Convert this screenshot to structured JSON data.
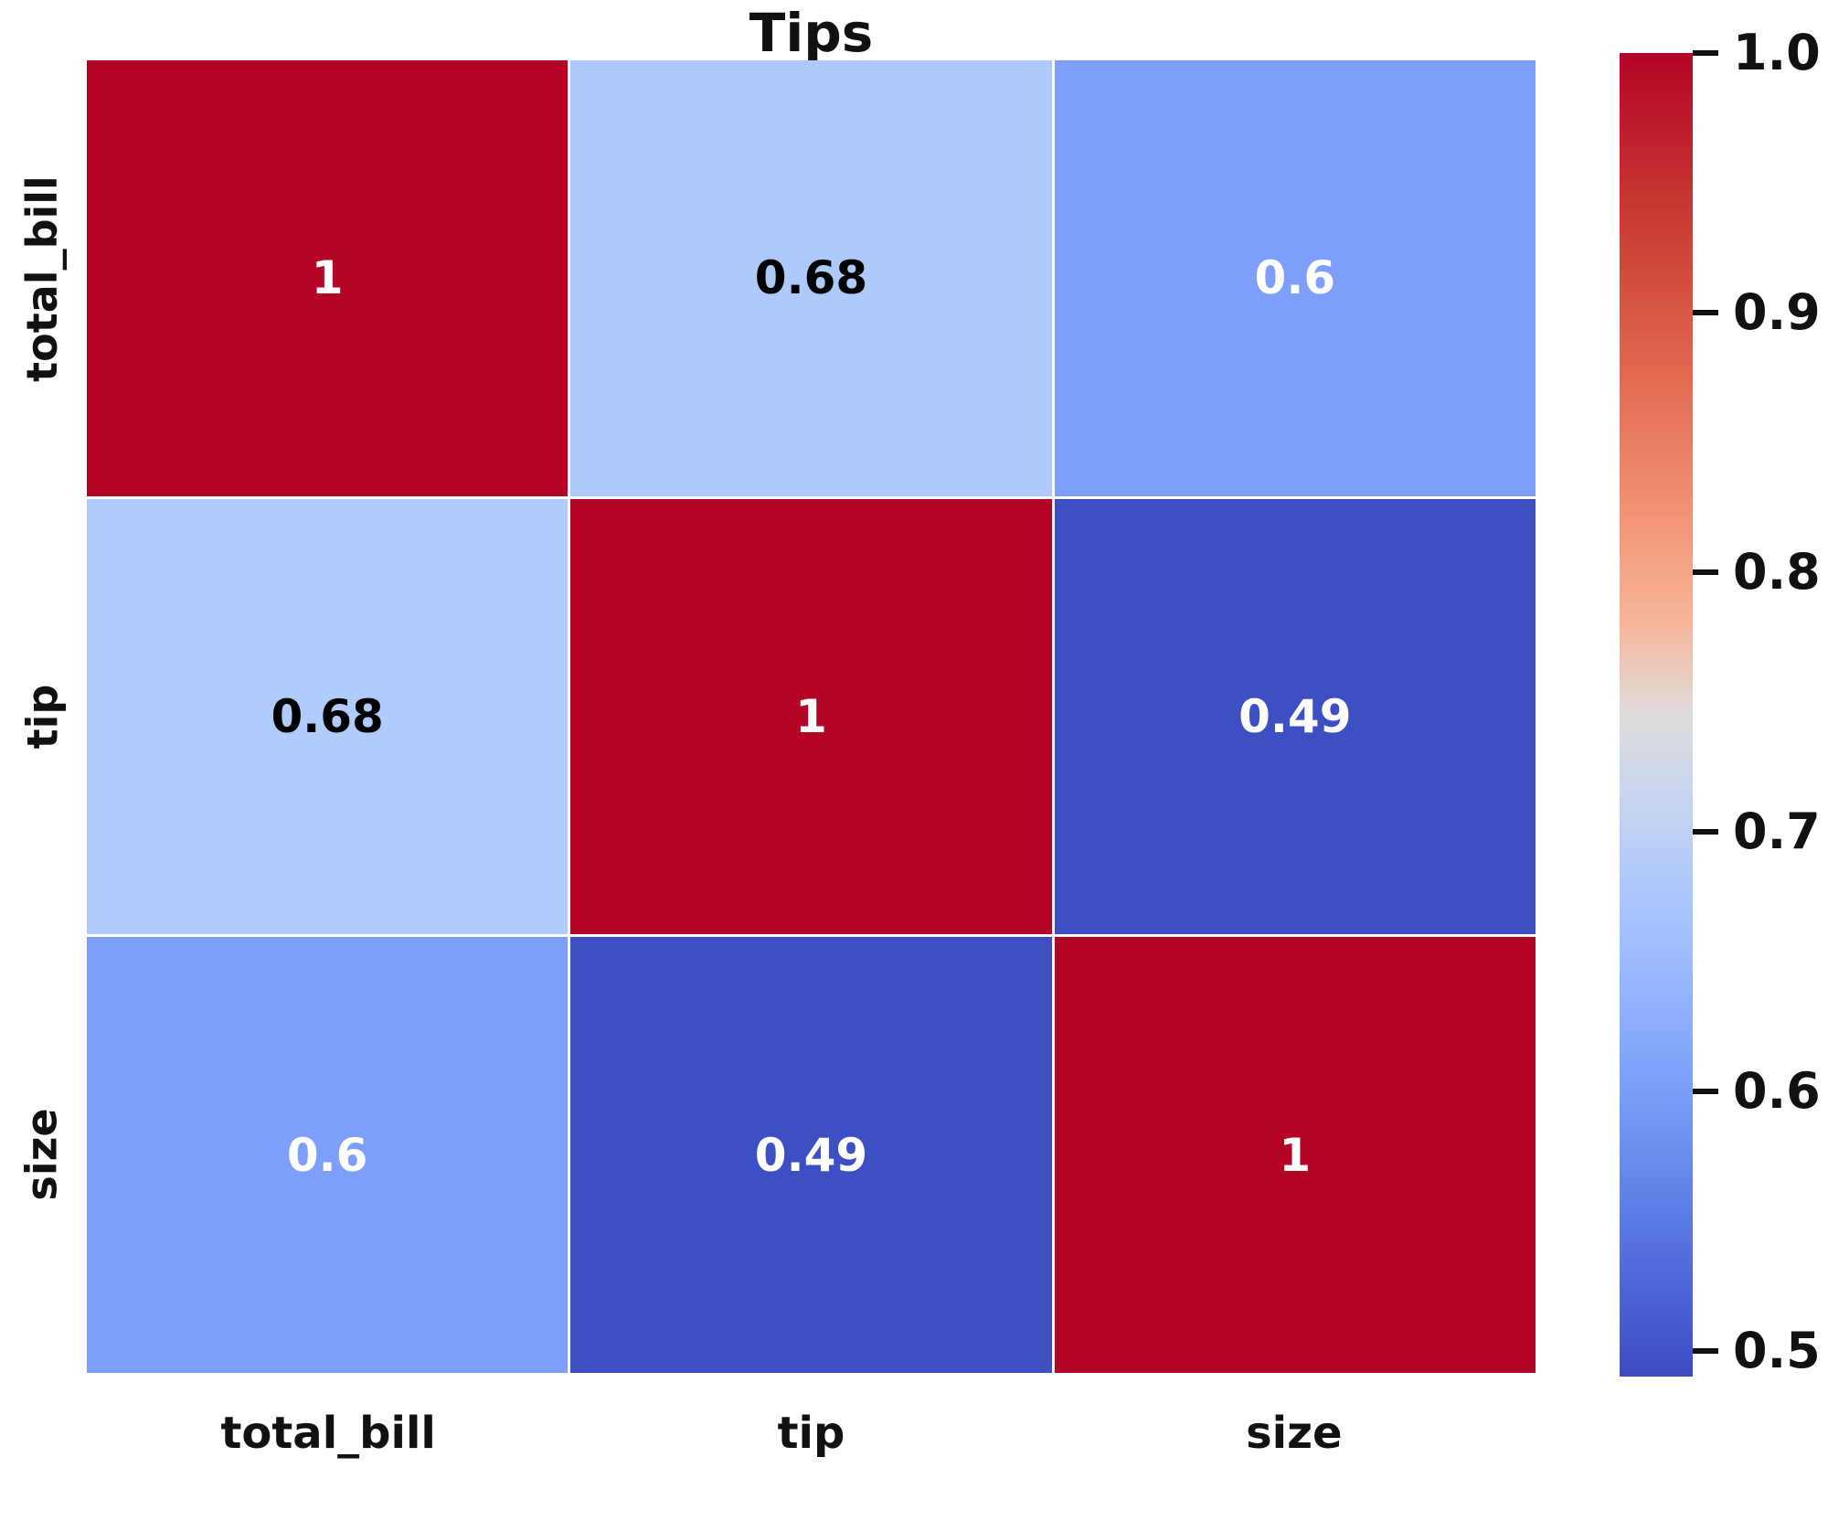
{
  "chart_data": {
    "type": "heatmap",
    "title": "Tips",
    "x_categories": [
      "total_bill",
      "tip",
      "size"
    ],
    "y_categories": [
      "total_bill",
      "tip",
      "size"
    ],
    "matrix": [
      [
        1,
        0.68,
        0.6
      ],
      [
        0.68,
        1,
        0.49
      ],
      [
        0.6,
        0.49,
        1
      ]
    ],
    "cell_labels": [
      [
        "1",
        "0.68",
        "0.6"
      ],
      [
        "0.68",
        "1",
        "0.49"
      ],
      [
        "0.6",
        "0.49",
        "1"
      ]
    ],
    "cell_colors": [
      [
        "#b40426",
        "#aec9fc",
        "#7d9ff9"
      ],
      [
        "#b0cbfc",
        "#b40426",
        "#3d50c3"
      ],
      [
        "#7d9ff9",
        "#3d50c3",
        "#b40426"
      ]
    ],
    "cell_text_colors": [
      [
        "#ffffff",
        "#000000",
        "#ffffff"
      ],
      [
        "#000000",
        "#ffffff",
        "#ffffff"
      ],
      [
        "#ffffff",
        "#ffffff",
        "#ffffff"
      ]
    ],
    "colormap": "coolwarm",
    "vmin": 0.49,
    "vmax": 1.0,
    "colorbar_ticks": [
      "1.0",
      "0.9",
      "0.8",
      "0.7",
      "0.6",
      "0.5"
    ],
    "colorbar_colors": {
      "top": "#b40426",
      "mid": "#dddcdc",
      "bottom": "#3b4cc0"
    },
    "grid_line_color": "#ffffff",
    "legend_position": "right-colorbar"
  }
}
